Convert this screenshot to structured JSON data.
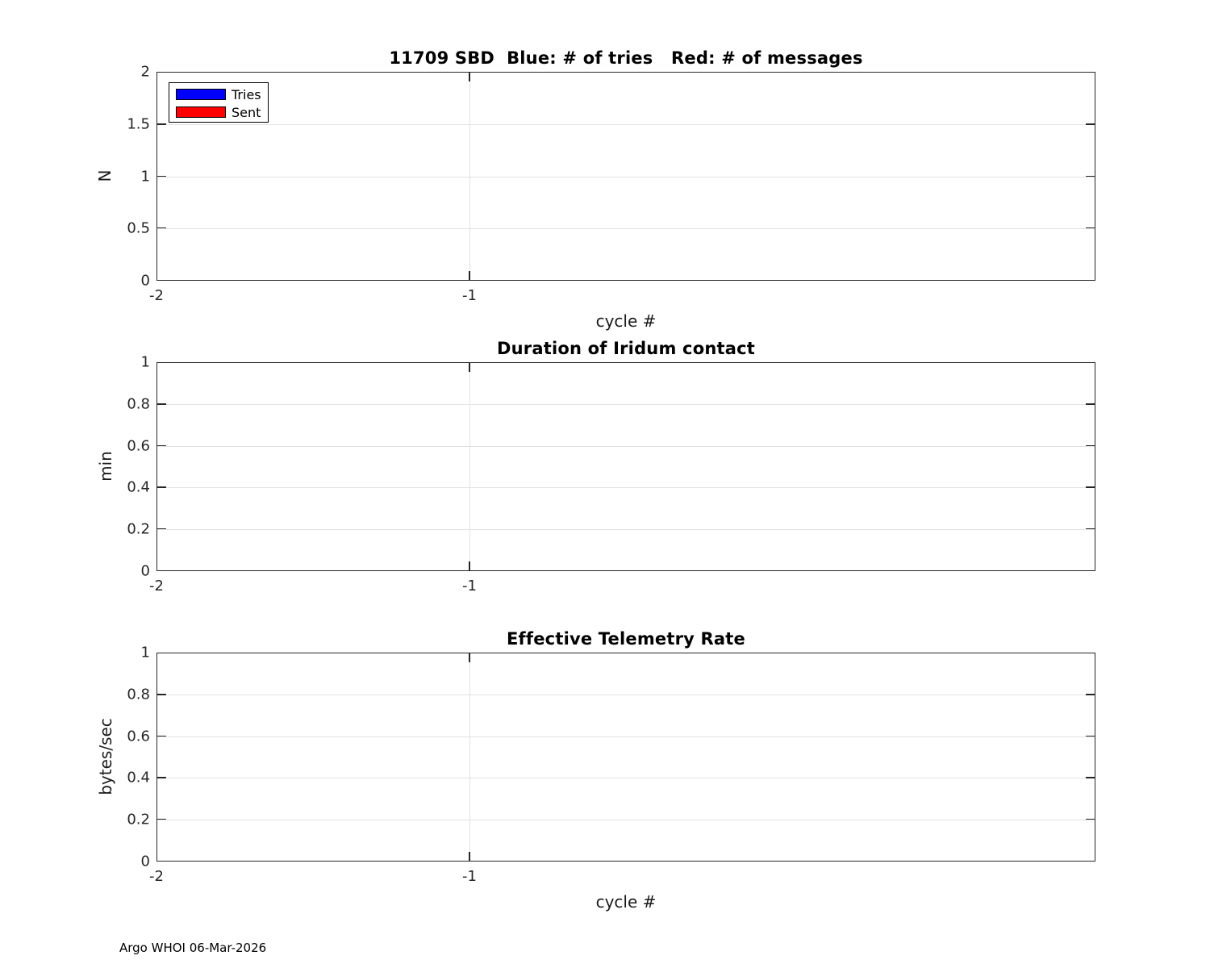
{
  "figure": {
    "footer": "Argo WHOI 06-Mar-2026",
    "background_color": "#ffffff",
    "axis_color": "#262626",
    "grid_color": "#e2e2e2"
  },
  "legend": {
    "position": "top-left",
    "items": [
      {
        "label": "Tries",
        "color": "#0000ff"
      },
      {
        "label": "Sent",
        "color": "#ff0000"
      }
    ]
  },
  "chart_data": [
    {
      "type": "bar",
      "title": "11709 SBD  Blue: # of tries   Red: # of messages",
      "xlabel": "cycle #",
      "ylabel": "N",
      "xlim": [
        -2,
        1
      ],
      "ylim": [
        0,
        2
      ],
      "xticks": [
        -2,
        -1
      ],
      "yticks": [
        0,
        0.5,
        1,
        1.5,
        2
      ],
      "grid": true,
      "legend_position": "top-left",
      "series": [
        {
          "name": "Tries",
          "color": "#0000ff",
          "x": [],
          "values": []
        },
        {
          "name": "Sent",
          "color": "#ff0000",
          "x": [],
          "values": []
        }
      ]
    },
    {
      "type": "bar",
      "title": "Duration of Iridum contact",
      "xlabel": "",
      "ylabel": "min",
      "xlim": [
        -2,
        1
      ],
      "ylim": [
        0,
        1
      ],
      "xticks": [
        -2,
        -1
      ],
      "yticks": [
        0,
        0.2,
        0.4,
        0.6,
        0.8,
        1
      ],
      "grid": true,
      "series": []
    },
    {
      "type": "bar",
      "title": "Effective Telemetry Rate",
      "xlabel": "cycle #",
      "ylabel": "bytes/sec",
      "xlim": [
        -2,
        1
      ],
      "ylim": [
        0,
        1
      ],
      "xticks": [
        -2,
        -1
      ],
      "yticks": [
        0,
        0.2,
        0.4,
        0.6,
        0.8,
        1
      ],
      "grid": true,
      "series": []
    }
  ]
}
